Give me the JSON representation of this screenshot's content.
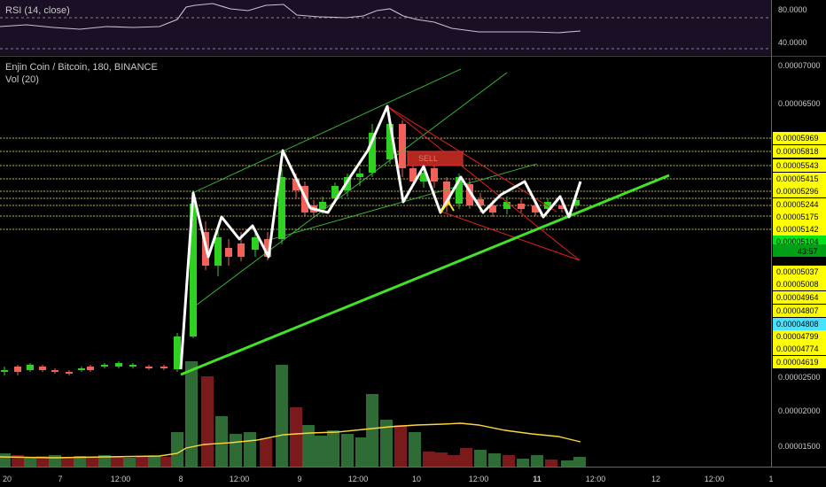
{
  "rsi": {
    "label": "RSI (14, close)",
    "levels": [
      "80.0000",
      "40.0000"
    ]
  },
  "main": {
    "title": "Enjin Coin / Bitcoin, 180, BINANCE",
    "vol_label": "Vol (20)",
    "countdown": "43:57",
    "sell_tag": "SELL"
  },
  "colors": {
    "up": "#2ed11f",
    "down": "#f2605a",
    "vol_up": "#2f6b35",
    "vol_down": "#7a1a1a",
    "support": "#ffff66",
    "resistance_zone": "#ffeb3b",
    "price_now": "#00e31a",
    "highlight": "#45e3ff",
    "pattern": "#ffffff",
    "trend": "#44e12a",
    "wedge": "#e0201a",
    "ma": "#ffd43b"
  },
  "chart_data": {
    "type": "candlestick",
    "title": "Enjin Coin / Bitcoin, 180, BINANCE",
    "y_axis_labels": [
      "0.00007000",
      "0.00006500",
      "0.00002500",
      "0.00002000",
      "0.00001500"
    ],
    "price_tags": [
      {
        "value": "0.00005969",
        "color": "#ffff00"
      },
      {
        "value": "0.00005818",
        "color": "#ffff00"
      },
      {
        "value": "0.00005543",
        "color": "#ffff00"
      },
      {
        "value": "0.00005415",
        "color": "#ffff00"
      },
      {
        "value": "0.00005296",
        "color": "#ffff00"
      },
      {
        "value": "0.00005244",
        "color": "#ffff00"
      },
      {
        "value": "0.00005175",
        "color": "#ffff00"
      },
      {
        "value": "0.00005142",
        "color": "#ffff00"
      },
      {
        "value": "0.00005104",
        "color": "#00e31a"
      },
      {
        "value": "0.00005037",
        "color": "#ffff00"
      },
      {
        "value": "0.00005008",
        "color": "#ffff00"
      },
      {
        "value": "0.00004964",
        "color": "#ffff00"
      },
      {
        "value": "0.00004807",
        "color": "#ffff00"
      },
      {
        "value": "0.00004808",
        "color": "#45e3ff"
      },
      {
        "value": "0.00004799",
        "color": "#ffff00"
      },
      {
        "value": "0.00004774",
        "color": "#ffff00"
      },
      {
        "value": "0.00004619",
        "color": "#ffff00"
      }
    ],
    "x_labels": [
      "20",
      "7",
      "12:00",
      "8",
      "12:00",
      "9",
      "12:00",
      "10",
      "12:00",
      "11",
      "12:00",
      "12",
      "12:00",
      "1"
    ],
    "volume_ma": "yellow line, rising to ~day 10 then falling",
    "candles_approx": "flat near 0.000046-0.000047 until day 8, spike to ~0.0000600, rally to ~0.0000650 on day 10, then consolidation ~0.0000520-0.0000545"
  }
}
